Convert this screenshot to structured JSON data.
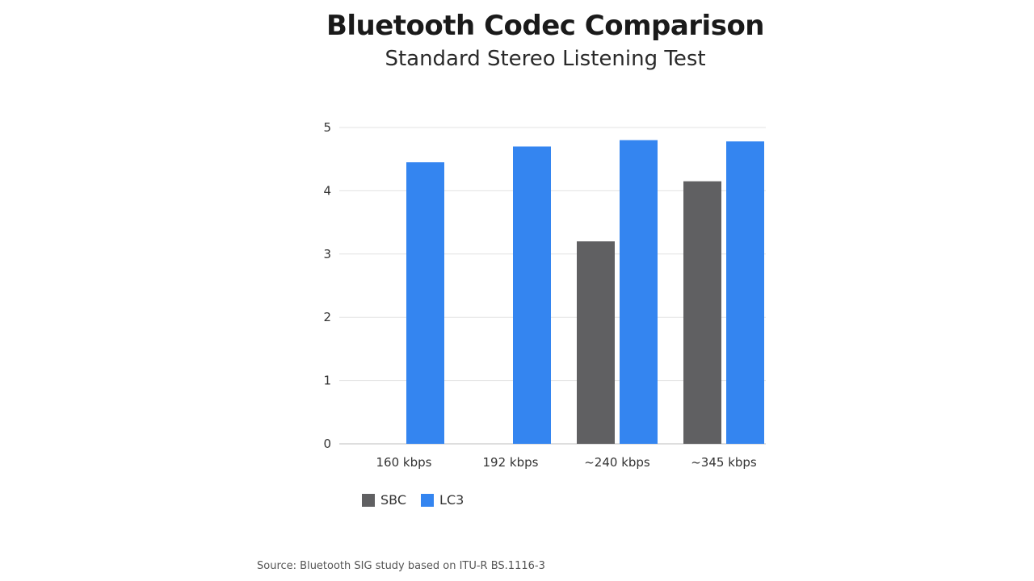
{
  "chart_data": {
    "type": "bar",
    "title": "Bluetooth Codec Comparison",
    "subtitle": "Standard Stereo Listening Test",
    "categories": [
      "160 kbps",
      "192 kbps",
      "~240 kbps",
      "~345 kbps"
    ],
    "series": [
      {
        "name": "SBC",
        "color": "#606062",
        "values": [
          null,
          null,
          3.2,
          4.15
        ]
      },
      {
        "name": "LC3",
        "color": "#3485f0",
        "values": [
          4.45,
          4.7,
          4.8,
          4.78
        ]
      }
    ],
    "yticks": [
      "0",
      "1",
      "2",
      "3",
      "4",
      "5"
    ],
    "ylim": [
      0,
      5
    ],
    "grid": true,
    "legend_position": "bottom-left",
    "source": "Source: Bluetooth SIG study based on ITU-R BS.1116-3"
  }
}
